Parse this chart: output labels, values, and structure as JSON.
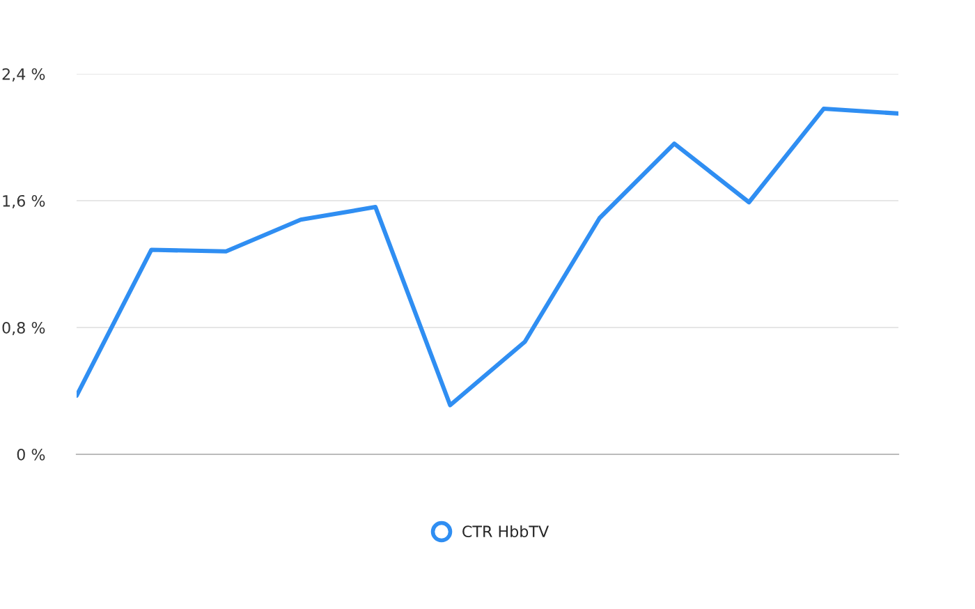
{
  "chart_data": {
    "type": "line",
    "categories": [
      null,
      null,
      null,
      null,
      null,
      null,
      null,
      null,
      null,
      null,
      null,
      null
    ],
    "series": [
      {
        "name": "CTR HbbTV",
        "color": "#2f8ef2",
        "values": [
          0.37,
          1.29,
          1.28,
          1.48,
          1.56,
          0.31,
          0.71,
          1.49,
          1.96,
          1.59,
          2.18,
          2.15
        ]
      }
    ],
    "ylim": [
      0,
      2.4
    ],
    "yticks": [
      {
        "value": 0,
        "label": "0 %"
      },
      {
        "value": 0.8,
        "label": "0,8 %"
      },
      {
        "value": 1.6,
        "label": "1,6 %"
      },
      {
        "value": 2.4,
        "label": "2,4 %"
      }
    ],
    "grid": "y",
    "legend": "bottom",
    "marker": "none",
    "line_style": "solid"
  }
}
